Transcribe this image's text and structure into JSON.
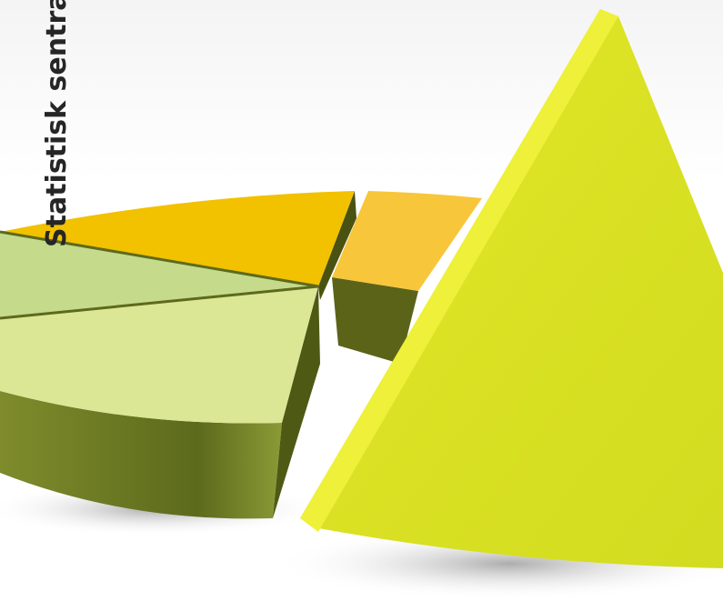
{
  "header": {
    "title": "Statistisk sentralb"
  }
}
